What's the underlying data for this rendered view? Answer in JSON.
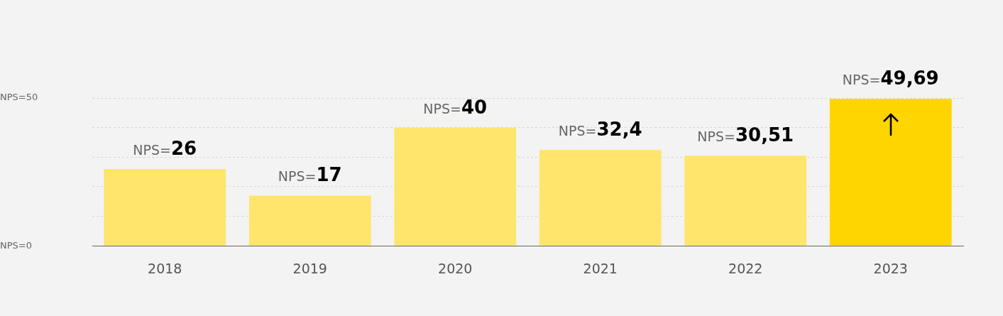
{
  "chart_data": {
    "type": "bar",
    "categories": [
      "2018",
      "2019",
      "2020",
      "2021",
      "2022",
      "2023"
    ],
    "values": [
      26,
      17,
      40,
      32.4,
      30.51,
      49.69
    ],
    "colors": [
      "#fee56b",
      "#fee56b",
      "#fee56b",
      "#fee56b",
      "#fee56b",
      "#ffd500"
    ],
    "value_labels": [
      "NPS=26",
      "NPS=17",
      "NPS=40",
      "NPS=32,4",
      "NPS=30,51",
      "NPS=49,69"
    ],
    "ylim": [
      0,
      50
    ],
    "yticks": [
      {
        "value": 0,
        "label": "NPS=0"
      },
      {
        "value": 10,
        "label": null
      },
      {
        "value": 20,
        "label": null
      },
      {
        "value": 30,
        "label": null
      },
      {
        "value": 40,
        "label": null
      },
      {
        "value": 50,
        "label": "NPS=50"
      }
    ],
    "grid": "y",
    "legend": false
  }
}
